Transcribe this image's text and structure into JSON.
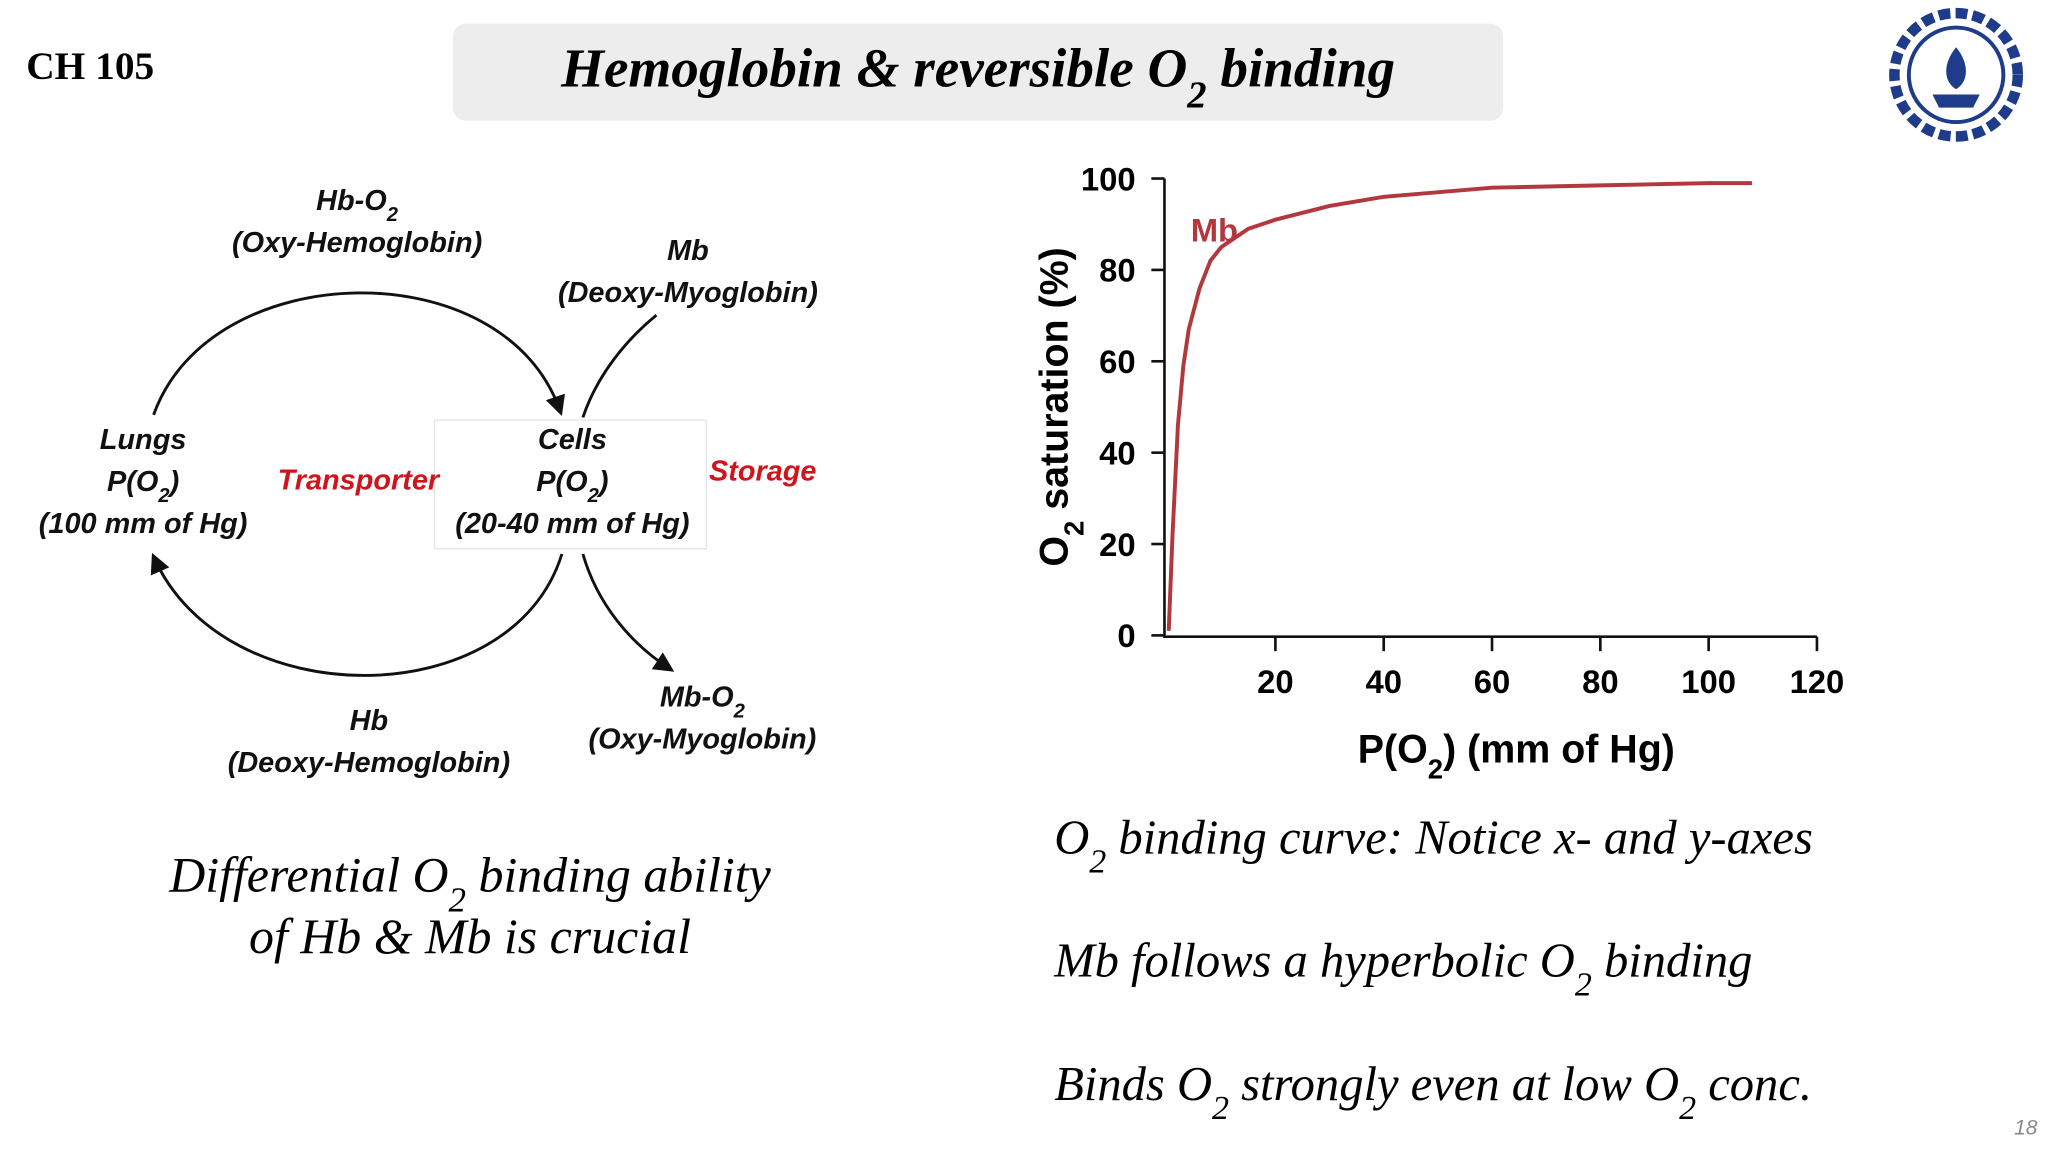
{
  "header": {
    "course": "CH 105",
    "title": [
      {
        "text": "Hemoglobin & reversible O"
      },
      {
        "text": "2",
        "sub": true
      },
      {
        "text": " binding"
      }
    ]
  },
  "diagram": {
    "nodes": [
      {
        "color": "#111111",
        "lines": [
          [
            {
              "text": "Hb-O"
            },
            {
              "text": "2",
              "sub": true
            }
          ],
          [
            {
              "text": "(Oxy-Hemoglobin)"
            }
          ]
        ]
      },
      {
        "color": "#111111",
        "lines": [
          [
            {
              "text": "Mb"
            }
          ],
          [
            {
              "text": "(Deoxy-Myoglobin)"
            }
          ]
        ]
      },
      {
        "color": "#111111",
        "lines": [
          [
            {
              "text": "Lungs"
            }
          ],
          [
            {
              "text": "P(O"
            },
            {
              "text": "2",
              "sub": true
            },
            {
              "text": ")"
            }
          ],
          [
            {
              "text": "(100 mm of Hg)"
            }
          ]
        ]
      },
      {
        "color": "#d0141b",
        "lines": [
          [
            {
              "text": "Transporter"
            }
          ]
        ]
      },
      {
        "color": "#111111",
        "lines": [
          [
            {
              "text": "Cells"
            }
          ],
          [
            {
              "text": "P(O"
            },
            {
              "text": "2",
              "sub": true
            },
            {
              "text": ")"
            }
          ],
          [
            {
              "text": "(20-40 mm of Hg)"
            }
          ]
        ]
      },
      {
        "color": "#d0141b",
        "lines": [
          [
            {
              "text": "Storage"
            }
          ]
        ]
      },
      {
        "color": "#111111",
        "lines": [
          [
            {
              "text": "Hb"
            }
          ],
          [
            {
              "text": "(Deoxy-Hemoglobin)"
            }
          ]
        ]
      },
      {
        "color": "#111111",
        "lines": [
          [
            {
              "text": "Mb-O"
            },
            {
              "text": "2",
              "sub": true
            }
          ],
          [
            {
              "text": "(Oxy-Myoglobin)"
            }
          ]
        ]
      }
    ]
  },
  "chart_data": {
    "type": "line",
    "x_label": [
      {
        "text": "P(O"
      },
      {
        "text": "2",
        "sub": true
      },
      {
        "text": ") (mm of Hg)"
      }
    ],
    "y_label": [
      {
        "text": "O"
      },
      {
        "text": "2",
        "sub": true
      },
      {
        "text": " saturation (%)"
      }
    ],
    "xlim": [
      0,
      120
    ],
    "ylim": [
      0,
      100
    ],
    "xticks": [
      20,
      40,
      60,
      80,
      100,
      120
    ],
    "yticks": [
      0,
      20,
      40,
      60,
      80,
      100
    ],
    "x": [
      0.3,
      1,
      2,
      3,
      4,
      6,
      8,
      10,
      15,
      20,
      30,
      40,
      60,
      80,
      100,
      108
    ],
    "series": [
      {
        "name": "Mb",
        "color": "#b2383e",
        "values": [
          1,
          22,
          46,
          59,
          67,
          76,
          82,
          85,
          89,
          91,
          94,
          96,
          98,
          98.5,
          99,
          99
        ]
      }
    ]
  },
  "summary": {
    "lines": [
      [
        {
          "text": "Differential O"
        },
        {
          "text": "2",
          "sub": true
        },
        {
          "text": " binding ability"
        }
      ],
      [
        {
          "text": "of Hb & Mb is crucial"
        }
      ]
    ]
  },
  "bullets": [
    [
      {
        "text": "O"
      },
      {
        "text": "2",
        "sub": true
      },
      {
        "text": " binding curve: Notice x- and y-axes"
      }
    ],
    [
      {
        "text": "Mb follows a hyperbolic O"
      },
      {
        "text": "2",
        "sub": true
      },
      {
        "text": " binding"
      }
    ],
    [
      {
        "text": "Binds O"
      },
      {
        "text": "2",
        "sub": true
      },
      {
        "text": " strongly even at low O"
      },
      {
        "text": "2",
        "sub": true
      },
      {
        "text": " conc."
      }
    ]
  ],
  "page_number": "18"
}
